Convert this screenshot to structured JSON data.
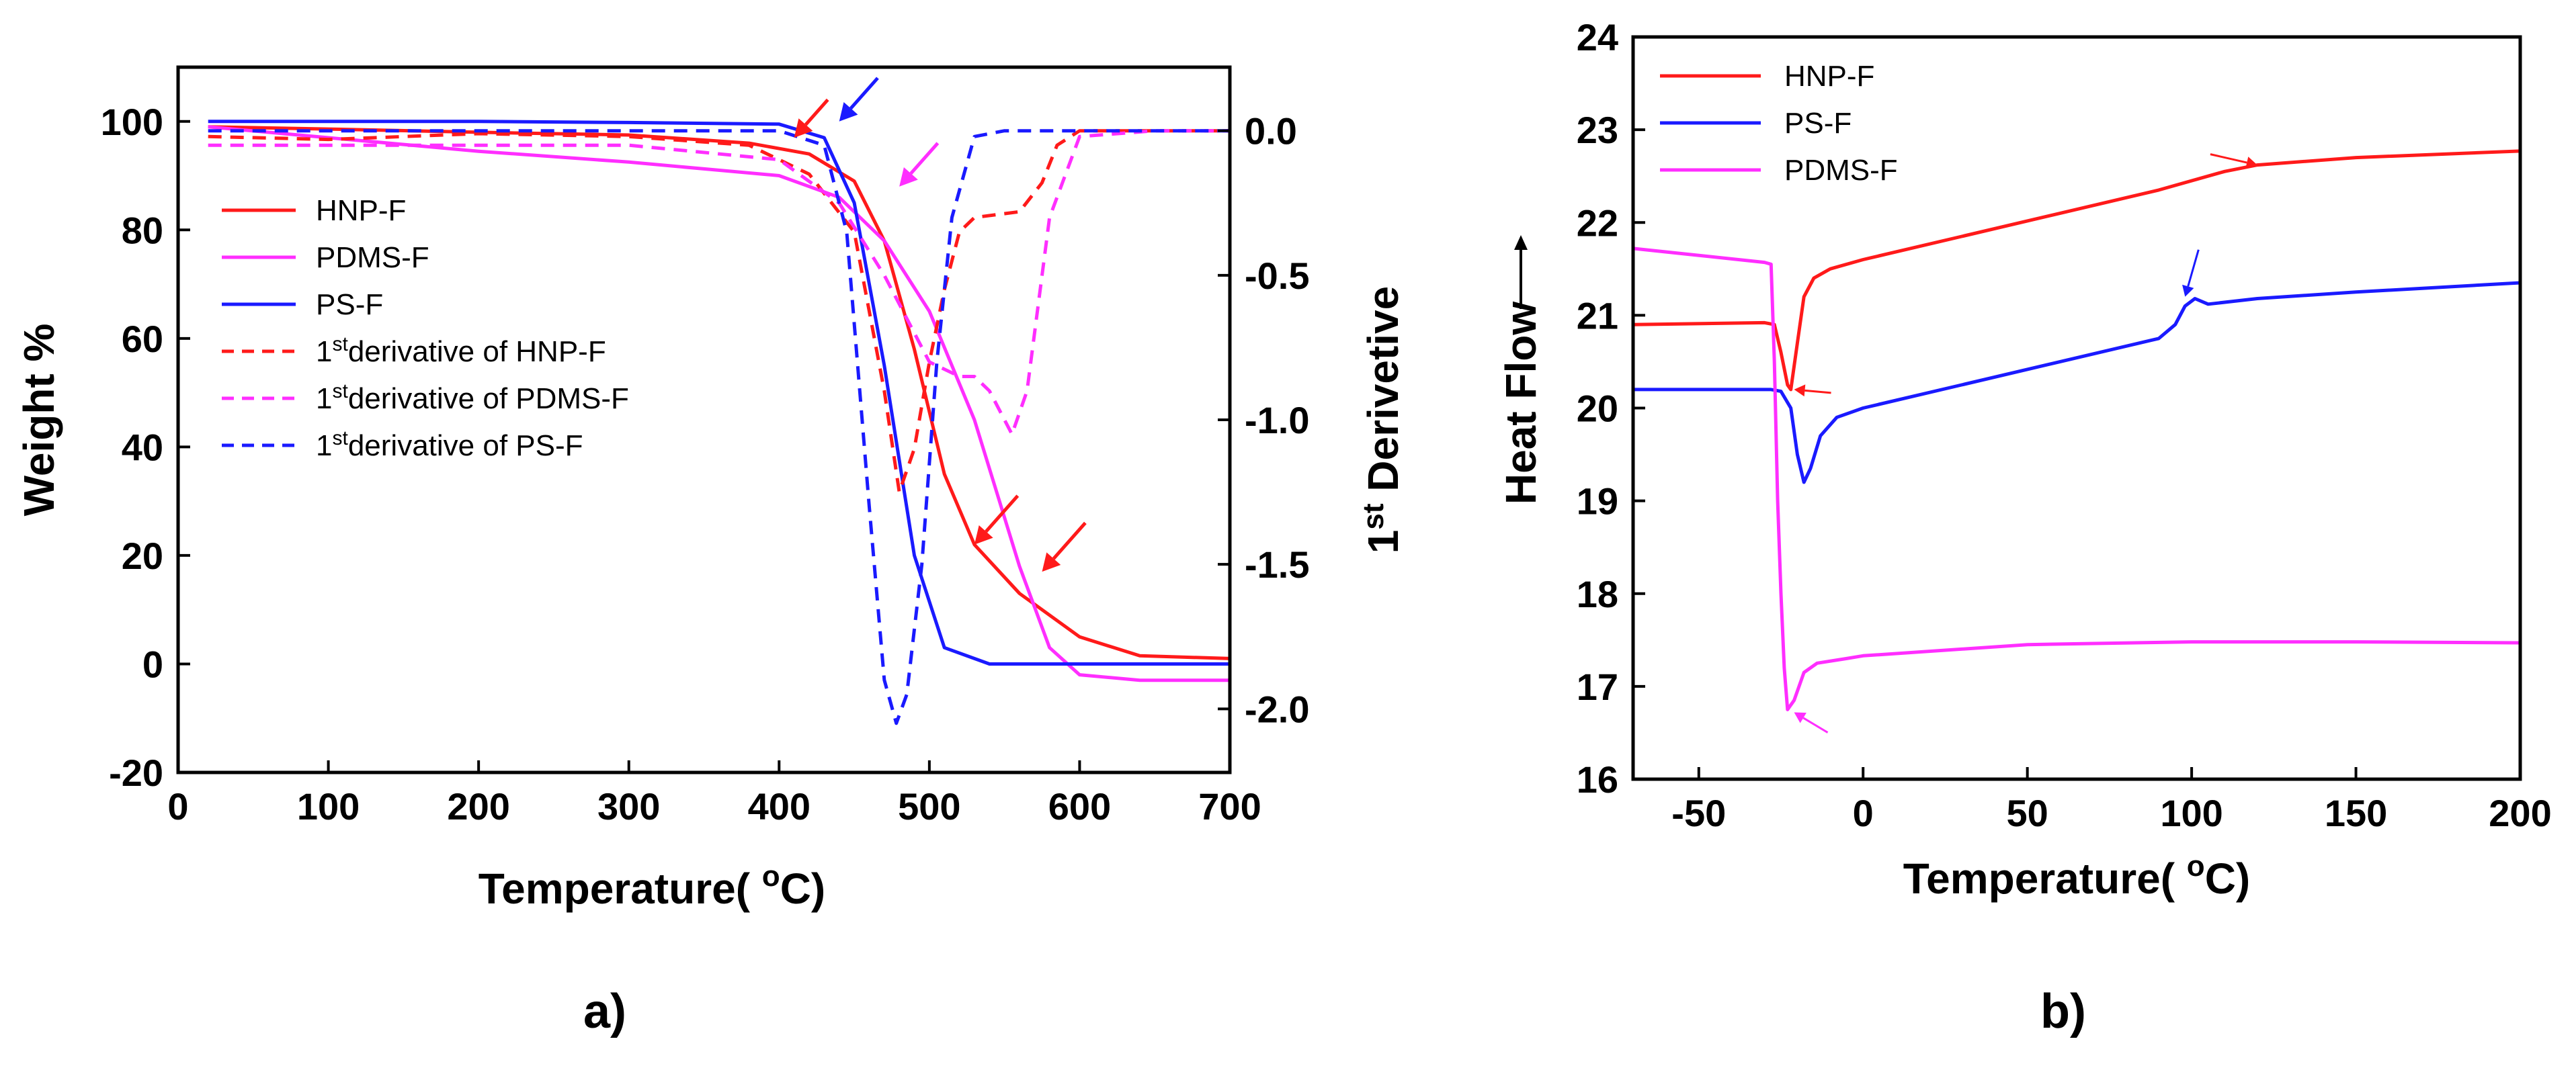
{
  "panels": {
    "a": "a)",
    "b": "b)"
  },
  "colors": {
    "HNP-F": "#ff1a1a",
    "PDMS-F": "#ff2eff",
    "PS-F": "#1a1aff"
  },
  "chart_data": [
    {
      "type": "line",
      "panel_label": "a)",
      "xlabel": "Temperature( °C)",
      "ylabel": "Weight %",
      "y2label": "1st Derivetive",
      "xlim": [
        0,
        700
      ],
      "ylim": [
        -20,
        110
      ],
      "y2lim": [
        -2.22,
        0.22
      ],
      "xticks": [
        0,
        100,
        200,
        300,
        400,
        500,
        600,
        700
      ],
      "yticks": [
        -20,
        0,
        20,
        40,
        60,
        80,
        100
      ],
      "y2ticks": [
        0.0,
        -0.5,
        -1.0,
        -1.5,
        -2.0
      ],
      "legend_position": "center-left",
      "series": [
        {
          "name": "HNP-F",
          "color": "#ff1a1a",
          "style": "solid",
          "axis": "left",
          "x": [
            20,
            100,
            200,
            300,
            380,
            420,
            450,
            470,
            490,
            510,
            530,
            560,
            600,
            640,
            700
          ],
          "y": [
            99,
            98.6,
            98,
            97.5,
            96,
            94,
            89,
            78,
            58,
            35,
            22,
            13,
            5,
            1.5,
            1
          ]
        },
        {
          "name": "PDMS-F",
          "color": "#ff2eff",
          "style": "solid",
          "axis": "left",
          "x": [
            20,
            100,
            200,
            300,
            400,
            440,
            470,
            500,
            530,
            560,
            580,
            600,
            640,
            700
          ],
          "y": [
            99,
            97,
            94.5,
            92.5,
            90,
            86,
            78,
            65,
            45,
            18,
            3,
            -2,
            -3,
            -3
          ]
        },
        {
          "name": "PS-F",
          "color": "#1a1aff",
          "style": "solid",
          "axis": "left",
          "x": [
            20,
            100,
            200,
            300,
            400,
            430,
            450,
            470,
            490,
            510,
            540,
            600,
            700
          ],
          "y": [
            100,
            100,
            100,
            99.8,
            99.5,
            97,
            85,
            55,
            20,
            3,
            0,
            0,
            0
          ]
        },
        {
          "name": "1stderivative of HNP-F",
          "color": "#ff1a1a",
          "style": "dashed",
          "axis": "right",
          "x": [
            20,
            100,
            200,
            300,
            380,
            420,
            450,
            470,
            480,
            490,
            500,
            510,
            520,
            530,
            560,
            575,
            585,
            600,
            650,
            700
          ],
          "y": [
            -0.02,
            -0.03,
            -0.01,
            -0.02,
            -0.05,
            -0.15,
            -0.35,
            -0.9,
            -1.25,
            -1.1,
            -0.8,
            -0.55,
            -0.35,
            -0.3,
            -0.28,
            -0.18,
            -0.05,
            0,
            0,
            0
          ]
        },
        {
          "name": "1stderivative of PDMS-F",
          "color": "#ff2eff",
          "style": "dashed",
          "axis": "right",
          "x": [
            20,
            100,
            200,
            300,
            400,
            440,
            470,
            500,
            520,
            530,
            540,
            555,
            565,
            580,
            600,
            650,
            700
          ],
          "y": [
            -0.05,
            -0.05,
            -0.05,
            -0.05,
            -0.1,
            -0.25,
            -0.5,
            -0.8,
            -0.85,
            -0.85,
            -0.9,
            -1.05,
            -0.9,
            -0.3,
            -0.02,
            0,
            0
          ]
        },
        {
          "name": "1stderivative of PS-F",
          "color": "#1a1aff",
          "style": "dashed",
          "axis": "right",
          "x": [
            20,
            100,
            200,
            300,
            400,
            430,
            445,
            460,
            470,
            478,
            485,
            495,
            505,
            515,
            530,
            550,
            600,
            700
          ],
          "y": [
            0,
            0,
            0,
            0,
            0,
            -0.05,
            -0.35,
            -1.3,
            -1.9,
            -2.05,
            -1.95,
            -1.5,
            -0.8,
            -0.3,
            -0.02,
            0,
            0,
            0
          ]
        }
      ],
      "arrows": [
        {
          "color": "#1a1aff",
          "x": 440,
          "y": 100,
          "y_offset": 8
        },
        {
          "color": "#ff1a1a",
          "x": 410,
          "y": 97,
          "y_offset": 7
        },
        {
          "color": "#ff2eff",
          "x": 480,
          "y": 88,
          "y_offset": 8
        },
        {
          "color": "#ff1a1a",
          "x": 530,
          "y": 22,
          "y_offset": 9
        },
        {
          "color": "#ff1a1a",
          "x": 575,
          "y": 17,
          "y_offset": 9
        }
      ]
    },
    {
      "type": "line",
      "panel_label": "b)",
      "xlabel": "Temperature( °C)",
      "ylabel": "Heat Flow",
      "xlim": [
        -70,
        200
      ],
      "ylim": [
        16,
        24
      ],
      "xticks": [
        -50,
        0,
        50,
        100,
        150,
        200
      ],
      "yticks": [
        16,
        17,
        18,
        19,
        20,
        21,
        22,
        23,
        24
      ],
      "legend_position": "top-left",
      "series": [
        {
          "name": "HNP-F",
          "color": "#ff1a1a",
          "x": [
            -70,
            -30,
            -27,
            -25,
            -23,
            -22,
            -20,
            -18,
            -15,
            -10,
            0,
            30,
            60,
            90,
            110,
            120,
            150,
            200
          ],
          "y": [
            20.9,
            20.92,
            20.9,
            20.6,
            20.25,
            20.2,
            20.7,
            21.2,
            21.4,
            21.5,
            21.6,
            21.85,
            22.1,
            22.35,
            22.55,
            22.62,
            22.7,
            22.77
          ]
        },
        {
          "name": "PS-F",
          "color": "#1a1aff",
          "x": [
            -70,
            -28,
            -25,
            -22,
            -20,
            -18,
            -16,
            -13,
            -8,
            0,
            30,
            60,
            90,
            95,
            98,
            101,
            105,
            120,
            150,
            200
          ],
          "y": [
            20.2,
            20.2,
            20.18,
            20.0,
            19.5,
            19.2,
            19.35,
            19.7,
            19.9,
            20.0,
            20.25,
            20.5,
            20.75,
            20.9,
            21.1,
            21.18,
            21.12,
            21.18,
            21.25,
            21.35
          ]
        },
        {
          "name": "PDMS-F",
          "color": "#ff2eff",
          "x": [
            -70,
            -30,
            -28,
            -27,
            -26,
            -25,
            -24,
            -23,
            -21,
            -18,
            -14,
            -5,
            0,
            50,
            100,
            150,
            200
          ],
          "y": [
            21.72,
            21.57,
            21.55,
            20.5,
            19.0,
            18.0,
            17.2,
            16.75,
            16.85,
            17.15,
            17.25,
            17.3,
            17.33,
            17.45,
            17.48,
            17.48,
            17.47
          ]
        }
      ],
      "arrows": [
        {
          "color": "#ff1a1a",
          "x": 120,
          "y": 22.62
        },
        {
          "color": "#1a1aff",
          "x": 98,
          "y": 21.2
        },
        {
          "color": "#ff1a1a",
          "x": -21,
          "y": 20.2
        },
        {
          "color": "#ff2eff",
          "x": -21,
          "y": 16.72
        }
      ]
    }
  ]
}
